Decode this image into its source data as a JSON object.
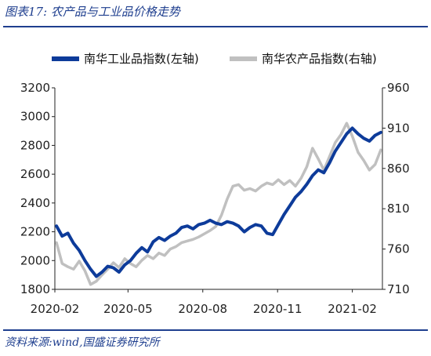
{
  "header": {
    "title": "图表17:  农产品与工业品价格走势"
  },
  "footer": {
    "source": "资料来源:wind,国盛证券研究所"
  },
  "chart_data": {
    "type": "line",
    "legend_placement": "top",
    "grid": false,
    "x_ticks": [
      "2020-02",
      "2020-05",
      "2020-08",
      "2020-11",
      "2021-02"
    ],
    "x_range": [
      "2020-02-01",
      "2021-03-10"
    ],
    "y_left": {
      "min": 1800,
      "max": 3200,
      "ticks": [
        1800,
        2000,
        2200,
        2400,
        2600,
        2800,
        3000,
        3200
      ]
    },
    "y_right": {
      "min": 710,
      "max": 960,
      "ticks": [
        710,
        760,
        810,
        860,
        910,
        960
      ]
    },
    "series": [
      {
        "name": "南华工业品指数(左轴)",
        "axis": "left",
        "color": "#0d3b9a",
        "points": [
          [
            "2020-02-03",
            2240
          ],
          [
            "2020-02-10",
            2170
          ],
          [
            "2020-02-17",
            2190
          ],
          [
            "2020-02-24",
            2120
          ],
          [
            "2020-03-02",
            2070
          ],
          [
            "2020-03-09",
            2000
          ],
          [
            "2020-03-16",
            1940
          ],
          [
            "2020-03-23",
            1890
          ],
          [
            "2020-03-30",
            1920
          ],
          [
            "2020-04-06",
            1960
          ],
          [
            "2020-04-13",
            1950
          ],
          [
            "2020-04-20",
            1920
          ],
          [
            "2020-04-27",
            1970
          ],
          [
            "2020-05-04",
            2000
          ],
          [
            "2020-05-11",
            2050
          ],
          [
            "2020-05-18",
            2090
          ],
          [
            "2020-05-25",
            2060
          ],
          [
            "2020-06-01",
            2130
          ],
          [
            "2020-06-08",
            2160
          ],
          [
            "2020-06-15",
            2140
          ],
          [
            "2020-06-22",
            2170
          ],
          [
            "2020-06-29",
            2190
          ],
          [
            "2020-07-06",
            2230
          ],
          [
            "2020-07-13",
            2240
          ],
          [
            "2020-07-20",
            2220
          ],
          [
            "2020-07-27",
            2250
          ],
          [
            "2020-08-03",
            2260
          ],
          [
            "2020-08-10",
            2280
          ],
          [
            "2020-08-17",
            2260
          ],
          [
            "2020-08-24",
            2250
          ],
          [
            "2020-08-31",
            2270
          ],
          [
            "2020-09-07",
            2260
          ],
          [
            "2020-09-14",
            2240
          ],
          [
            "2020-09-21",
            2200
          ],
          [
            "2020-09-28",
            2230
          ],
          [
            "2020-10-05",
            2250
          ],
          [
            "2020-10-12",
            2240
          ],
          [
            "2020-10-19",
            2190
          ],
          [
            "2020-10-26",
            2180
          ],
          [
            "2020-11-02",
            2250
          ],
          [
            "2020-11-09",
            2320
          ],
          [
            "2020-11-16",
            2380
          ],
          [
            "2020-11-23",
            2440
          ],
          [
            "2020-11-30",
            2480
          ],
          [
            "2020-12-07",
            2530
          ],
          [
            "2020-12-14",
            2590
          ],
          [
            "2020-12-21",
            2630
          ],
          [
            "2020-12-28",
            2610
          ],
          [
            "2021-01-04",
            2680
          ],
          [
            "2021-01-11",
            2760
          ],
          [
            "2021-01-18",
            2820
          ],
          [
            "2021-01-25",
            2880
          ],
          [
            "2021-02-01",
            2920
          ],
          [
            "2021-02-08",
            2880
          ],
          [
            "2021-02-15",
            2850
          ],
          [
            "2021-02-22",
            2830
          ],
          [
            "2021-03-01",
            2870
          ],
          [
            "2021-03-08",
            2890
          ]
        ]
      },
      {
        "name": "南华农产品指数(右轴)",
        "axis": "right",
        "color": "#c0c0c0",
        "points": [
          [
            "2020-02-03",
            768
          ],
          [
            "2020-02-10",
            742
          ],
          [
            "2020-02-17",
            738
          ],
          [
            "2020-02-24",
            735
          ],
          [
            "2020-03-02",
            745
          ],
          [
            "2020-03-09",
            733
          ],
          [
            "2020-03-16",
            716
          ],
          [
            "2020-03-23",
            720
          ],
          [
            "2020-03-30",
            728
          ],
          [
            "2020-04-06",
            735
          ],
          [
            "2020-04-13",
            743
          ],
          [
            "2020-04-20",
            737
          ],
          [
            "2020-04-27",
            748
          ],
          [
            "2020-05-04",
            742
          ],
          [
            "2020-05-11",
            738
          ],
          [
            "2020-05-18",
            746
          ],
          [
            "2020-05-25",
            752
          ],
          [
            "2020-06-01",
            748
          ],
          [
            "2020-06-08",
            755
          ],
          [
            "2020-06-15",
            752
          ],
          [
            "2020-06-22",
            760
          ],
          [
            "2020-06-29",
            763
          ],
          [
            "2020-07-06",
            768
          ],
          [
            "2020-07-13",
            770
          ],
          [
            "2020-07-20",
            772
          ],
          [
            "2020-07-27",
            775
          ],
          [
            "2020-08-03",
            779
          ],
          [
            "2020-08-10",
            783
          ],
          [
            "2020-08-17",
            788
          ],
          [
            "2020-08-24",
            802
          ],
          [
            "2020-08-31",
            822
          ],
          [
            "2020-09-07",
            838
          ],
          [
            "2020-09-14",
            840
          ],
          [
            "2020-09-21",
            833
          ],
          [
            "2020-09-28",
            835
          ],
          [
            "2020-10-05",
            832
          ],
          [
            "2020-10-12",
            838
          ],
          [
            "2020-10-19",
            842
          ],
          [
            "2020-10-26",
            840
          ],
          [
            "2020-11-02",
            846
          ],
          [
            "2020-11-09",
            840
          ],
          [
            "2020-11-16",
            845
          ],
          [
            "2020-11-23",
            838
          ],
          [
            "2020-11-30",
            848
          ],
          [
            "2020-12-07",
            862
          ],
          [
            "2020-12-14",
            885
          ],
          [
            "2020-12-21",
            872
          ],
          [
            "2020-12-28",
            858
          ],
          [
            "2021-01-04",
            875
          ],
          [
            "2021-01-11",
            892
          ],
          [
            "2021-01-18",
            902
          ],
          [
            "2021-01-25",
            916
          ],
          [
            "2021-02-01",
            900
          ],
          [
            "2021-02-08",
            880
          ],
          [
            "2021-02-15",
            870
          ],
          [
            "2021-02-22",
            858
          ],
          [
            "2021-03-01",
            865
          ],
          [
            "2021-03-08",
            883
          ]
        ]
      }
    ]
  }
}
